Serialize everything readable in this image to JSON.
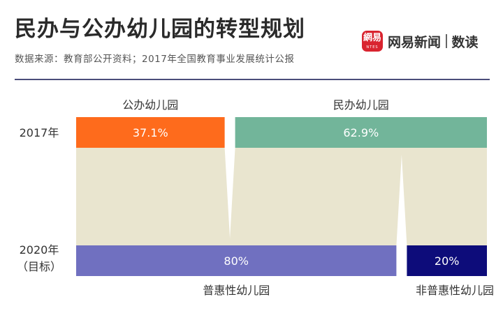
{
  "title": "民办与公办幼儿园的转型规划",
  "subtitle": "数据来源：教育部公开资料；2017年全国教育事业发展统计公报",
  "brand": {
    "logo_text": "網易",
    "logo_subtext": "NTES",
    "name": "网易新闻",
    "product": "数读"
  },
  "colors": {
    "public": "#fe6b1c",
    "private": "#72b59a",
    "inclusive": "#7070c0",
    "non_inclusive": "#0d0c7a",
    "flow": "#e9e5cf",
    "rule": "#4a4d7a",
    "text": "#333333"
  },
  "chart_data": {
    "type": "bar",
    "orientation": "horizontal-stacked",
    "rows": [
      {
        "label": "2017年",
        "segments": [
          {
            "name": "公办幼儿园",
            "value": 37.1,
            "display": "37.1%"
          },
          {
            "name": "民办幼儿园",
            "value": 62.9,
            "display": "62.9%"
          }
        ]
      },
      {
        "label": "2020年",
        "label2": "（目标）",
        "segments": [
          {
            "name": "普惠性幼儿园",
            "value": 80,
            "display": "80%"
          },
          {
            "name": "非普惠性幼儿园",
            "value": 20,
            "display": "20%"
          }
        ]
      }
    ],
    "unit": "%",
    "xlim": [
      0,
      100
    ],
    "grid": false,
    "legend": "none"
  }
}
